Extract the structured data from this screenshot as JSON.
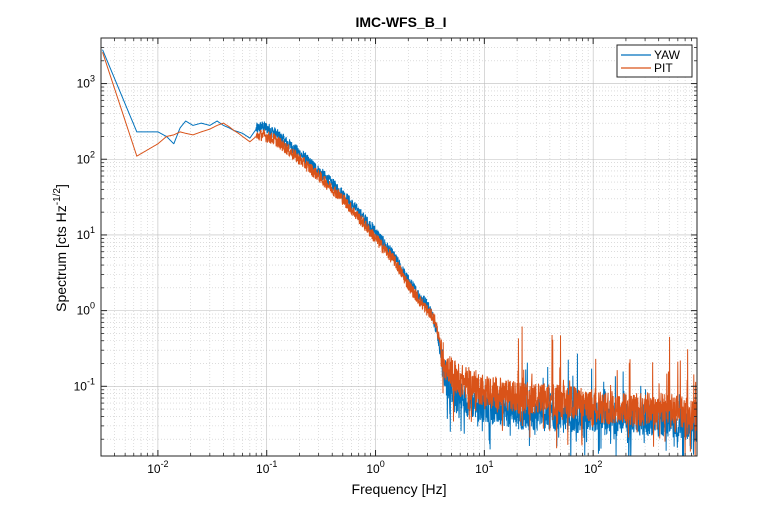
{
  "chart_data": {
    "type": "line",
    "title": "IMC-WFS_B_I",
    "xlabel": "Frequency [Hz]",
    "ylabel": "Spectrum [cts Hz",
    "ylabel_exponent": "-1/2",
    "ylabel_close": "]",
    "xscale": "log",
    "yscale": "log",
    "xlim": [
      0.003,
      900
    ],
    "ylim": [
      0.012,
      4000
    ],
    "grid": true,
    "legend_position": "top-right",
    "x_ticks": [
      {
        "value": 0.01,
        "base": "10",
        "exp": "-2"
      },
      {
        "value": 0.1,
        "base": "10",
        "exp": "-1"
      },
      {
        "value": 1,
        "base": "10",
        "exp": "0"
      },
      {
        "value": 10,
        "base": "10",
        "exp": "1"
      },
      {
        "value": 100,
        "base": "10",
        "exp": "2"
      }
    ],
    "y_ticks": [
      {
        "value": 0.1,
        "base": "10",
        "exp": "-1"
      },
      {
        "value": 1,
        "base": "10",
        "exp": "0"
      },
      {
        "value": 10,
        "base": "10",
        "exp": "1"
      },
      {
        "value": 100,
        "base": "10",
        "exp": "2"
      },
      {
        "value": 1000,
        "base": "10",
        "exp": "3"
      }
    ],
    "series": [
      {
        "name": "YAW",
        "color": "#0072BD",
        "x": [
          0.0031,
          0.0064,
          0.01,
          0.012,
          0.014,
          0.016,
          0.018,
          0.021,
          0.025,
          0.03,
          0.035,
          0.04,
          0.045,
          0.05,
          0.055,
          0.06,
          0.07,
          0.08,
          0.09,
          0.1,
          0.12,
          0.15,
          0.2,
          0.3,
          0.5,
          0.7,
          1.0,
          1.5,
          2.0,
          2.5,
          3.0,
          3.3,
          3.5,
          3.7,
          4.0,
          4.5,
          6,
          10,
          20,
          50,
          100,
          200,
          500,
          900
        ],
        "y": [
          2800,
          230,
          230,
          200,
          160,
          260,
          320,
          280,
          300,
          280,
          320,
          280,
          260,
          240,
          230,
          220,
          190,
          250,
          270,
          260,
          220,
          170,
          120,
          70,
          35,
          20,
          11,
          5,
          2.5,
          1.6,
          1.2,
          0.9,
          0.7,
          0.5,
          0.25,
          0.12,
          0.07,
          0.055,
          0.045,
          0.04,
          0.04,
          0.038,
          0.035,
          0.03
        ]
      },
      {
        "name": "PIT",
        "color": "#D95319",
        "x": [
          0.0031,
          0.0064,
          0.01,
          0.012,
          0.014,
          0.016,
          0.018,
          0.021,
          0.025,
          0.03,
          0.035,
          0.04,
          0.045,
          0.05,
          0.055,
          0.06,
          0.07,
          0.08,
          0.09,
          0.1,
          0.12,
          0.15,
          0.2,
          0.3,
          0.5,
          0.7,
          1.0,
          1.5,
          2.0,
          2.5,
          3.0,
          3.3,
          3.5,
          3.7,
          4.0,
          4.5,
          6,
          10,
          20,
          50,
          100,
          200,
          500,
          900
        ],
        "y": [
          2600,
          110,
          160,
          200,
          210,
          230,
          220,
          210,
          230,
          250,
          280,
          300,
          270,
          240,
          220,
          200,
          170,
          200,
          210,
          200,
          180,
          140,
          100,
          60,
          30,
          17,
          9,
          4.5,
          2.2,
          1.4,
          1.0,
          0.85,
          0.75,
          0.55,
          0.3,
          0.17,
          0.12,
          0.09,
          0.07,
          0.065,
          0.055,
          0.05,
          0.05,
          0.04
        ]
      }
    ]
  }
}
